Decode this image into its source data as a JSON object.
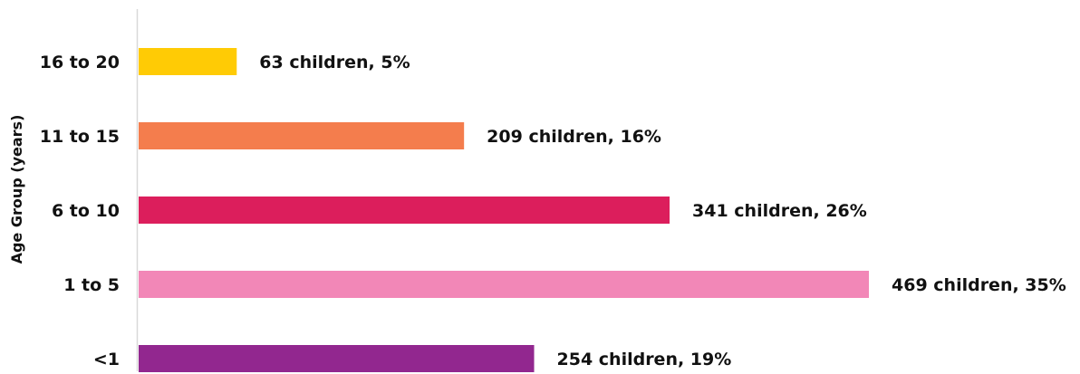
{
  "chart_data": {
    "type": "bar",
    "orientation": "horizontal",
    "ylabel": "Age Group (years)",
    "xlabel": "",
    "categories": [
      "<1",
      "1 to 5",
      "6 to 10",
      "11 to 15",
      "16 to 20"
    ],
    "values": [
      254,
      469,
      341,
      209,
      63
    ],
    "percentages": [
      19,
      35,
      26,
      16,
      5
    ],
    "data_labels": [
      "254 children, 19%",
      "469 children, 35%",
      "341 children, 26%",
      "209 children, 16%",
      "63 children, 5%"
    ],
    "colors": [
      "#92278f",
      "#f287b7",
      "#dc1e5c",
      "#f47d4d",
      "#ffcb05"
    ],
    "xlim": [
      0,
      469
    ],
    "grid": false,
    "legend": "none"
  }
}
